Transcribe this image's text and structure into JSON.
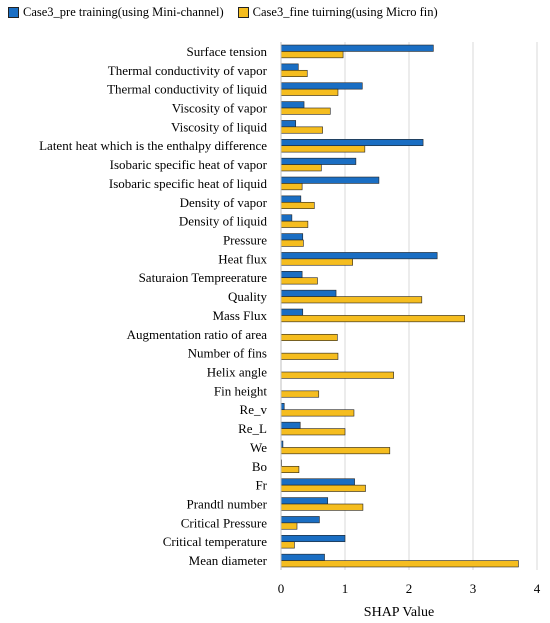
{
  "chart_data": {
    "type": "bar",
    "orientation": "horizontal",
    "xlabel": "SHAP Value",
    "ylabel": "",
    "xlim": [
      0,
      4
    ],
    "xticks": [
      "0",
      "1",
      "2",
      "3",
      "4"
    ],
    "grid": true,
    "legend_position": "top",
    "categories": [
      "Surface tension",
      "Thermal conductivity of vapor",
      "Thermal conductivity of liquid",
      "Viscosity of vapor",
      "Viscosity of liquid",
      "Latent heat which is the enthalpy difference",
      "Isobaric specific heat of vapor",
      "Isobaric specific heat of liquid",
      "Density of vapor",
      "Density of liquid",
      "Pressure",
      "Heat flux",
      "Saturaion Tempreerature",
      "Quality",
      "Mass Flux",
      "Augmentation ratio of area",
      "Number of fins",
      "Helix angle",
      "Fin height",
      "Re_v",
      "Re_L",
      "We",
      "Bo",
      "Fr",
      "Prandtl number",
      "Critical Pressure",
      "Critical temperature",
      "Mean diameter"
    ],
    "series": [
      {
        "name": "Case3_pre training(using Mini-channel)",
        "color": "#1a6ec3",
        "values": [
          2.38,
          0.27,
          1.27,
          0.36,
          0.23,
          2.22,
          1.17,
          1.53,
          0.31,
          0.17,
          0.34,
          2.44,
          0.33,
          0.86,
          0.34,
          0.0,
          0.0,
          0.0,
          0.0,
          0.05,
          0.3,
          0.03,
          0.01,
          1.15,
          0.73,
          0.6,
          1.0,
          0.68
        ]
      },
      {
        "name": "Case3_fine tuirning(using Micro fin)",
        "color": "#f5bd1f",
        "values": [
          0.97,
          0.41,
          0.89,
          0.77,
          0.65,
          1.31,
          0.63,
          0.33,
          0.52,
          0.42,
          0.35,
          1.12,
          0.57,
          2.2,
          2.87,
          0.88,
          0.89,
          1.76,
          0.59,
          1.14,
          1.0,
          1.7,
          0.28,
          1.32,
          1.28,
          0.25,
          0.21,
          3.71
        ]
      }
    ]
  }
}
